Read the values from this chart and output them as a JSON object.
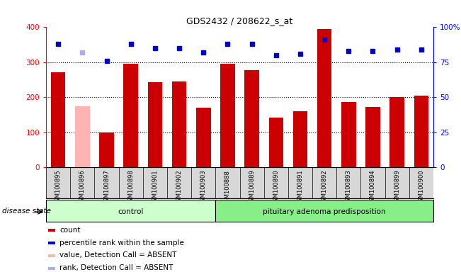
{
  "title": "GDS2432 / 208622_s_at",
  "samples": [
    "GSM100895",
    "GSM100896",
    "GSM100897",
    "GSM100898",
    "GSM100901",
    "GSM100902",
    "GSM100903",
    "GSM100888",
    "GSM100889",
    "GSM100890",
    "GSM100891",
    "GSM100892",
    "GSM100893",
    "GSM100894",
    "GSM100899",
    "GSM100900"
  ],
  "bar_values": [
    272,
    175,
    100,
    295,
    243,
    246,
    170,
    295,
    277,
    142,
    160,
    395,
    187,
    173,
    200,
    205
  ],
  "bar_colors": [
    "#cc0000",
    "#ffb3b3",
    "#cc0000",
    "#cc0000",
    "#cc0000",
    "#cc0000",
    "#cc0000",
    "#cc0000",
    "#cc0000",
    "#cc0000",
    "#cc0000",
    "#cc0000",
    "#cc0000",
    "#cc0000",
    "#cc0000",
    "#cc0000"
  ],
  "percentile_values": [
    88,
    82,
    76,
    88,
    85,
    85,
    82,
    88,
    88,
    80,
    81,
    91,
    83,
    83,
    84,
    84
  ],
  "percentile_colors": [
    "#0000cc",
    "#aaaaff",
    "#0000cc",
    "#0000cc",
    "#0000cc",
    "#0000cc",
    "#0000cc",
    "#0000cc",
    "#0000cc",
    "#0000cc",
    "#0000cc",
    "#0000cc",
    "#0000cc",
    "#0000cc",
    "#0000cc",
    "#0000cc"
  ],
  "groups": [
    {
      "label": "control",
      "start": 0,
      "end": 7,
      "color": "#ccffcc"
    },
    {
      "label": "pituitary adenoma predisposition",
      "start": 7,
      "end": 16,
      "color": "#88ee88"
    }
  ],
  "ylim_left": [
    0,
    400
  ],
  "ylim_right": [
    0,
    100
  ],
  "yticks_left": [
    0,
    100,
    200,
    300,
    400
  ],
  "yticks_right": [
    0,
    25,
    50,
    75,
    100
  ],
  "ytick_labels_right": [
    "0",
    "25",
    "50",
    "75",
    "100%"
  ],
  "grid_values": [
    100,
    200,
    300
  ],
  "disease_state_label": "disease state",
  "legend": [
    {
      "label": "count",
      "color": "#cc0000"
    },
    {
      "label": "percentile rank within the sample",
      "color": "#0000cc"
    },
    {
      "label": "value, Detection Call = ABSENT",
      "color": "#ffb3b3"
    },
    {
      "label": "rank, Detection Call = ABSENT",
      "color": "#aaaaff"
    }
  ],
  "background_color": "#ffffff"
}
